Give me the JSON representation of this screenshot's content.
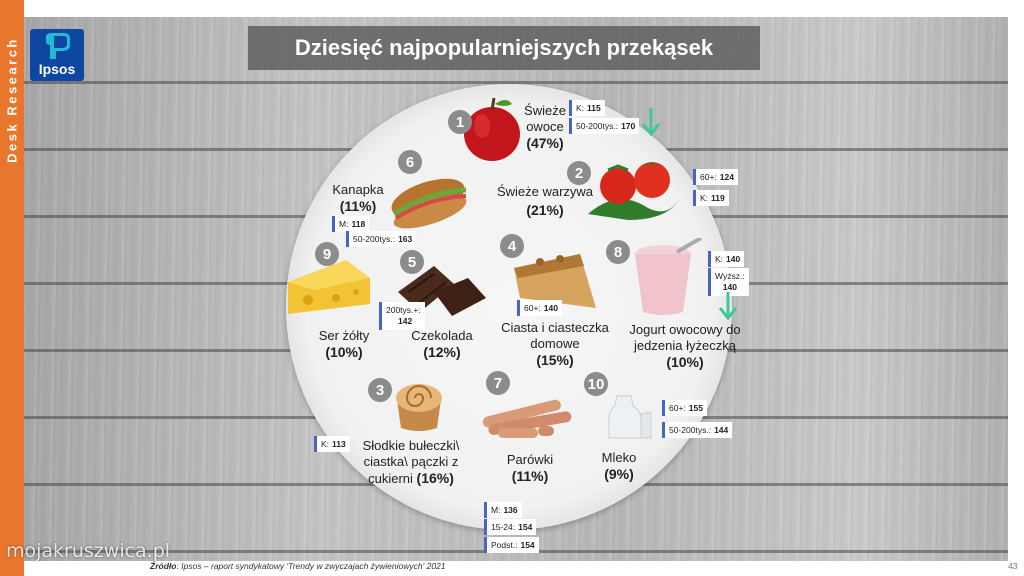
{
  "sidebar": {
    "label": "Desk Research"
  },
  "logo": {
    "text": "Ipsos"
  },
  "title": "Dziesięć najpopularniejszych przekąsek",
  "items": [
    {
      "rank": "1",
      "name_line1": "Świeże",
      "name_line2": "owoce",
      "pct": "(47%)",
      "badges": [
        {
          "label": "K:",
          "value": "115"
        },
        {
          "label": "50-200tys.:",
          "value": "170"
        }
      ],
      "trend": "down"
    },
    {
      "rank": "2",
      "name_line1": "Świeże warzywa",
      "pct": "(21%)",
      "badges": [
        {
          "label": "60+:",
          "value": "124"
        },
        {
          "label": "K:",
          "value": "119"
        }
      ]
    },
    {
      "rank": "3",
      "name_line1": "Słodkie bułeczki\\",
      "name_line2": "ciastka\\ pączki z",
      "name_line3": "cukierni",
      "pct": "(16%)",
      "badges": [
        {
          "label": "K:",
          "value": "113"
        }
      ]
    },
    {
      "rank": "4",
      "name_line1": "Ciasta i ciasteczka",
      "name_line2": "domowe",
      "pct": "(15%)",
      "badges": [
        {
          "label": "60+:",
          "value": "140"
        }
      ]
    },
    {
      "rank": "5",
      "name_line1": "Czekolada",
      "pct": "(12%)",
      "badges": [
        {
          "label": "200tys.+:",
          "value": "142"
        }
      ]
    },
    {
      "rank": "6",
      "name_line1": "Kanapka",
      "pct": "(11%)",
      "badges": [
        {
          "label": "M:",
          "value": "118"
        },
        {
          "label": "50-200tys.:",
          "value": "163"
        }
      ]
    },
    {
      "rank": "7",
      "name_line1": "Parówki",
      "pct": "(11%)",
      "badges": [
        {
          "label": "M:",
          "value": "136"
        },
        {
          "label": "15-24:",
          "value": "154"
        },
        {
          "label": "Podst.:",
          "value": "154"
        }
      ]
    },
    {
      "rank": "8",
      "name_line1": "Jogurt owocowy do",
      "name_line2": "jedzenia łyżeczką",
      "pct": "(10%)",
      "badges": [
        {
          "label": "K:",
          "value": "140"
        },
        {
          "label": "Wyższ.:",
          "value": "140"
        }
      ],
      "trend": "down"
    },
    {
      "rank": "9",
      "name_line1": "Ser żółty",
      "pct": "(10%)",
      "badges": []
    },
    {
      "rank": "10",
      "name_line1": "Mleko",
      "pct": "(9%)",
      "badges": [
        {
          "label": "60+:",
          "value": "155"
        },
        {
          "label": "50-200tys.:",
          "value": "144"
        }
      ]
    }
  ],
  "source": {
    "label": "Źródło",
    "text": ": Ipsos – raport syndykatowy 'Trendy w zwyczajach żywieniowych' 2021"
  },
  "page_number": "43",
  "watermark": "mojakruszwica.pl",
  "colors": {
    "sidebar": "#e8762c",
    "logo_bg": "#0d47a1",
    "badge_accent": "#4a63c6",
    "arrow": "#3fc79a"
  }
}
